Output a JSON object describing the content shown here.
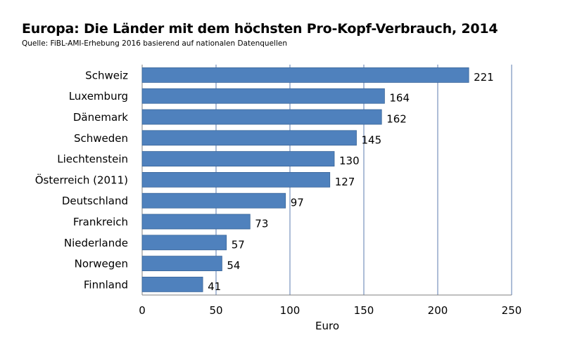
{
  "title": "Europa: Die Länder mit dem höchsten Pro-Kopf-Verbrauch, 2014",
  "subtitle": "Quelle: FiBL-AMI-Erhebung 2016 basierend auf nationalen Datenquellen",
  "colors": {
    "bar": "#4F81BD",
    "bar_edge": "#3A6699",
    "grid": "#5B7BAF"
  },
  "chart_data": {
    "type": "bar",
    "orientation": "horizontal",
    "categories": [
      "Schweiz",
      "Luxemburg",
      "Dänemark",
      "Schweden",
      "Liechtenstein",
      "Österreich (2011)",
      "Deutschland",
      "Frankreich",
      "Niederlande",
      "Norwegen",
      "Finnland"
    ],
    "values": [
      221,
      164,
      162,
      145,
      130,
      127,
      97,
      73,
      57,
      54,
      41
    ],
    "xlabel": "Euro",
    "xlim": [
      0,
      250
    ],
    "xticks": [
      0,
      50,
      100,
      150,
      200,
      250
    ],
    "grid": true,
    "data_labels": true
  }
}
